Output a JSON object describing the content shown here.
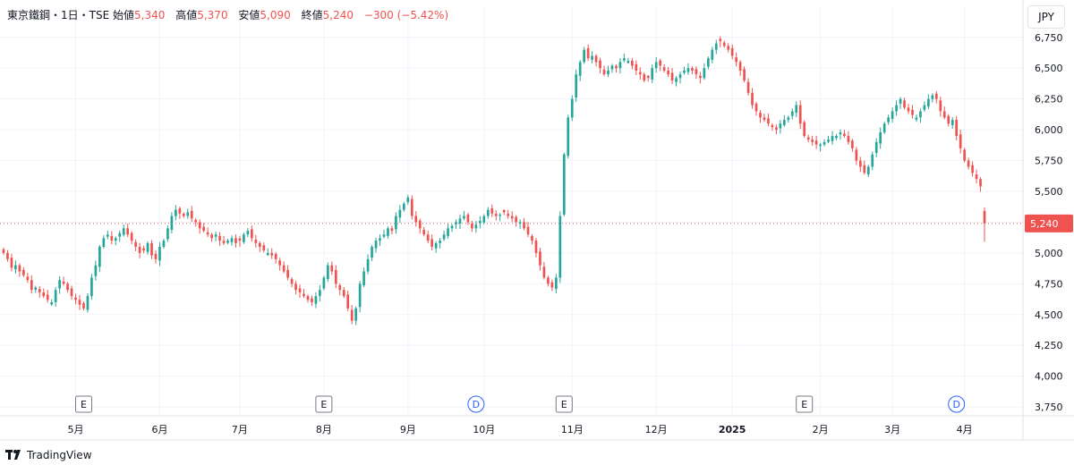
{
  "header": {
    "title": "東京鐵鋼・1日・TSE",
    "open_label": "始値",
    "open_value": "5,340",
    "high_label": "高値",
    "high_value": "5,370",
    "low_label": "安値",
    "low_value": "5,090",
    "close_label": "終値",
    "close_value": "5,240",
    "change_value": "−300 (−5.42%)"
  },
  "currency_button": "JPY",
  "branding": {
    "name": "TradingView"
  },
  "colors": {
    "up": "#26a69a",
    "down": "#ef5350",
    "event_blue": "#2962ff",
    "grid": "#f0f3fa",
    "text": "#131722"
  },
  "chart_data": {
    "type": "candlestick",
    "y_axis": {
      "ticks": [
        3750,
        4000,
        4250,
        4500,
        4750,
        5000,
        5250,
        5500,
        5750,
        6000,
        6250,
        6500,
        6750
      ],
      "tick_labels": [
        "3,750",
        "4,000",
        "4,250",
        "4,500",
        "4,750",
        "5,000",
        "5,250",
        "5,500",
        "5,750",
        "6,000",
        "6,250",
        "6,500",
        "6,750"
      ],
      "range": [
        3700,
        6850
      ],
      "position": "right"
    },
    "x_axis": {
      "labels": [
        "5月",
        "6月",
        "7月",
        "8月",
        "9月",
        "10月",
        "11月",
        "12月",
        "2025",
        "2月",
        "3月",
        "4月"
      ],
      "label_bar_index": [
        18,
        39,
        59,
        80,
        101,
        120,
        142,
        163,
        182,
        204,
        222,
        240
      ]
    },
    "last_price": {
      "value": 5240,
      "label": "5,240"
    },
    "events": [
      {
        "label": "E",
        "type": "earnings",
        "bar_index": 20
      },
      {
        "label": "E",
        "type": "earnings",
        "bar_index": 80
      },
      {
        "label": "D",
        "type": "dividend",
        "bar_index": 118
      },
      {
        "label": "E",
        "type": "earnings",
        "bar_index": 140
      },
      {
        "label": "E",
        "type": "earnings",
        "bar_index": 200
      },
      {
        "label": "D",
        "type": "dividend",
        "bar_index": 238
      }
    ],
    "close_path": [
      5000,
      4950,
      4880,
      4900,
      4850,
      4820,
      4780,
      4700,
      4720,
      4680,
      4650,
      4620,
      4600,
      4700,
      4780,
      4750,
      4700,
      4650,
      4620,
      4580,
      4550,
      4650,
      4800,
      4900,
      5050,
      5120,
      5150,
      5100,
      5120,
      5160,
      5200,
      5150,
      5100,
      5050,
      5000,
      5020,
      5080,
      4980,
      4950,
      5050,
      5100,
      5200,
      5300,
      5350,
      5320,
      5300,
      5330,
      5280,
      5250,
      5200,
      5180,
      5150,
      5120,
      5150,
      5100,
      5080,
      5100,
      5120,
      5080,
      5100,
      5150,
      5180,
      5120,
      5080,
      5050,
      5020,
      5000,
      4980,
      4950,
      4900,
      4850,
      4800,
      4750,
      4700,
      4680,
      4650,
      4620,
      4600,
      4650,
      4700,
      4800,
      4900,
      4850,
      4750,
      4700,
      4650,
      4550,
      4450,
      4550,
      4750,
      4850,
      4950,
      5050,
      5100,
      5120,
      5150,
      5200,
      5180,
      5300,
      5350,
      5400,
      5450,
      5300,
      5250,
      5200,
      5150,
      5100,
      5050,
      5080,
      5100,
      5150,
      5200,
      5220,
      5250,
      5280,
      5300,
      5250,
      5200,
      5230,
      5260,
      5300,
      5350,
      5320,
      5300,
      5310,
      5330,
      5300,
      5280,
      5250,
      5250,
      5200,
      5150,
      5100,
      5000,
      4900,
      4800,
      4750,
      4720,
      4800,
      5300,
      5800,
      6100,
      6250,
      6450,
      6550,
      6650,
      6580,
      6600,
      6550,
      6500,
      6450,
      6480,
      6520,
      6500,
      6550,
      6580,
      6560,
      6520,
      6480,
      6450,
      6400,
      6420,
      6500,
      6550,
      6520,
      6480,
      6450,
      6400,
      6420,
      6450,
      6480,
      6500,
      6480,
      6450,
      6420,
      6500,
      6580,
      6650,
      6700,
      6720,
      6680,
      6650,
      6600,
      6550,
      6480,
      6400,
      6300,
      6200,
      6150,
      6100,
      6080,
      6050,
      6020,
      6000,
      6050,
      6080,
      6100,
      6150,
      6200,
      6050,
      5950,
      5920,
      5900,
      5880,
      5880,
      5900,
      5920,
      5950,
      5950,
      5980,
      5950,
      5900,
      5850,
      5750,
      5700,
      5650,
      5700,
      5800,
      5900,
      5980,
      6050,
      6100,
      6150,
      6200,
      6250,
      6180,
      6150,
      6120,
      6100,
      6150,
      6200,
      6250,
      6280,
      6250,
      6150,
      6100,
      6050,
      6080,
      5950,
      5850,
      5750,
      5700,
      5650,
      5600,
      5540,
      5240
    ],
    "last_candle": {
      "open": 5340,
      "high": 5370,
      "low": 5090,
      "close": 5240
    }
  }
}
